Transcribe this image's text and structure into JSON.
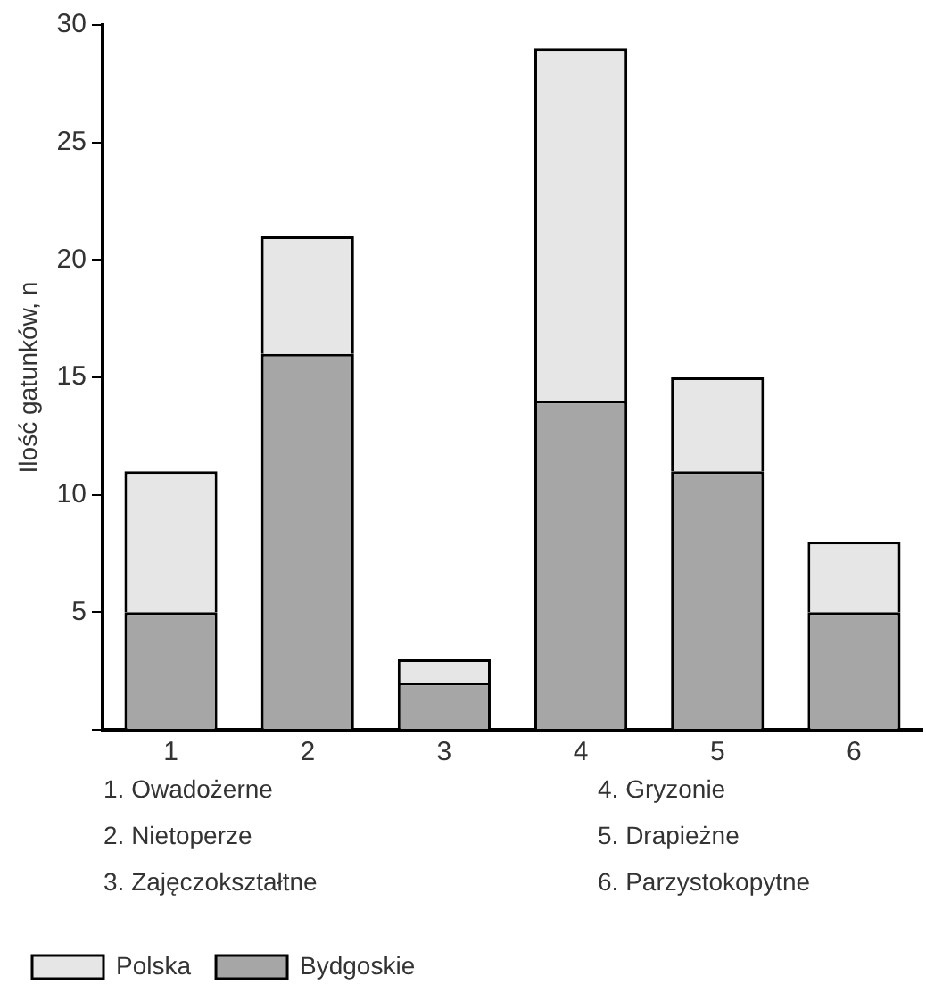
{
  "chart_data": {
    "type": "bar",
    "stacked": true,
    "ylabel": "Ilość gatunków, n",
    "categories": [
      "1",
      "2",
      "3",
      "4",
      "5",
      "6"
    ],
    "series": [
      {
        "name": "Bydgoskie",
        "color": "#a6a6a6",
        "values": [
          5,
          16,
          2,
          14,
          11,
          5
        ]
      },
      {
        "name": "Polska",
        "color": "#e6e6e6",
        "values": [
          6,
          5,
          1,
          15,
          4,
          3
        ]
      }
    ],
    "ylim": [
      0,
      30
    ],
    "yticks": [
      {
        "value": 0,
        "label": null
      },
      5,
      10,
      15,
      20,
      25,
      30
    ],
    "grid": false,
    "legend": "bottom",
    "annotations": [
      "1. Owadożerne",
      "2. Nietoperze",
      "3. Zajęczokształtne",
      "4. Gryzonie",
      "5. Drapieżne",
      "6. Parzystokopytne"
    ]
  }
}
